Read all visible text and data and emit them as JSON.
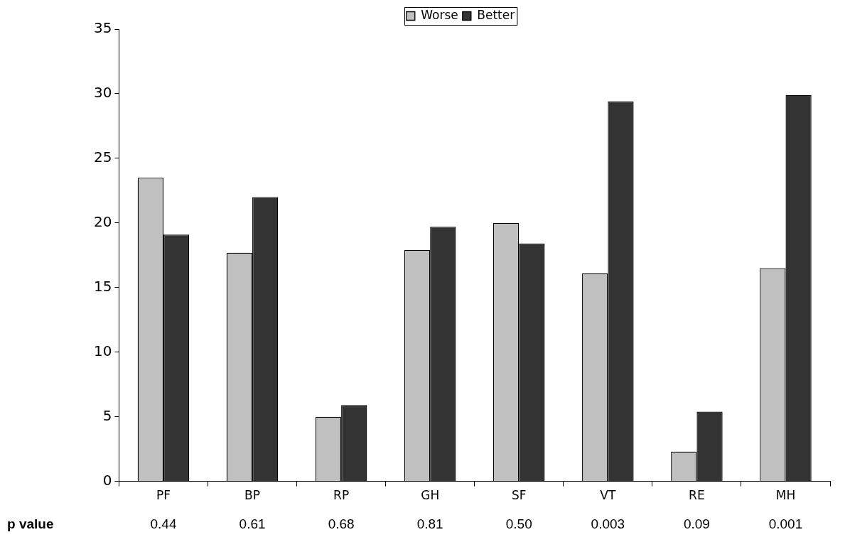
{
  "chart_data": {
    "type": "bar",
    "categories": [
      "PF",
      "BP",
      "RP",
      "GH",
      "SF",
      "VT",
      "RE",
      "MH"
    ],
    "series": [
      {
        "name": "Worse",
        "color": "#c0c0c0",
        "values": [
          23.5,
          17.7,
          5.0,
          17.9,
          20.0,
          16.1,
          2.3,
          16.5
        ]
      },
      {
        "name": "Better",
        "color": "#333333",
        "values": [
          19.1,
          22.0,
          5.9,
          19.7,
          18.4,
          29.4,
          5.4,
          29.9
        ]
      }
    ],
    "ylim": [
      0,
      35
    ],
    "yticks": [
      0,
      5,
      10,
      15,
      20,
      25,
      30,
      35
    ],
    "grid": false,
    "legend": "top",
    "annotations": [
      "p value",
      "0.44",
      "0.61",
      "0.68",
      "0.81",
      "0.50",
      "0.003",
      "0.09",
      "0.001"
    ]
  }
}
